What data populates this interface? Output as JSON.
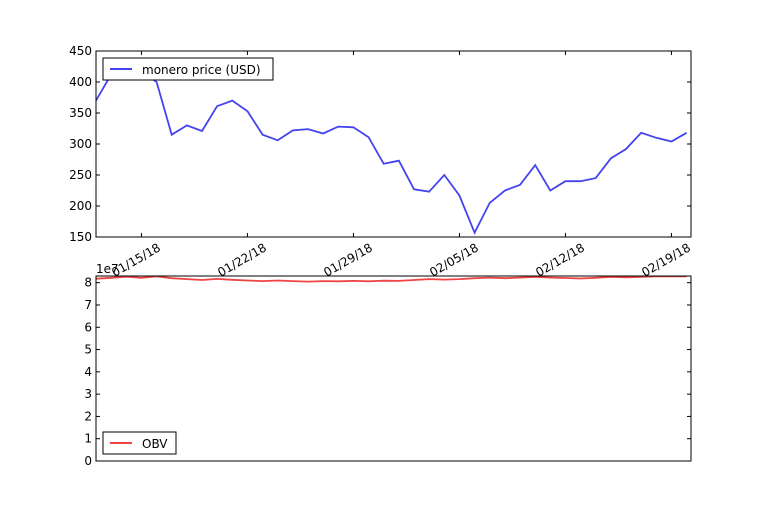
{
  "chart_data": [
    {
      "type": "line",
      "title": "",
      "xlabel": "",
      "ylabel": "",
      "ylim": [
        150,
        450
      ],
      "yticks": [
        150,
        200,
        250,
        300,
        350,
        400,
        450
      ],
      "xtick_labels": [
        "01/15/18",
        "01/22/18",
        "01/29/18",
        "02/05/18",
        "02/12/18",
        "02/19/18"
      ],
      "legend": {
        "placement": "top-left"
      },
      "grid": false,
      "series": [
        {
          "name": "monero price (USD)",
          "color": "#4444ee",
          "x": [
            "01/12/18",
            "01/13/18",
            "01/14/18",
            "01/15/18",
            "01/16/18",
            "01/17/18",
            "01/18/18",
            "01/19/18",
            "01/20/18",
            "01/21/18",
            "01/22/18",
            "01/23/18",
            "01/24/18",
            "01/25/18",
            "01/26/18",
            "01/27/18",
            "01/28/18",
            "01/29/18",
            "01/30/18",
            "01/31/18",
            "02/01/18",
            "02/02/18",
            "02/03/18",
            "02/04/18",
            "02/05/18",
            "02/06/18",
            "02/07/18",
            "02/08/18",
            "02/09/18",
            "02/10/18",
            "02/11/18",
            "02/12/18",
            "02/13/18",
            "02/14/18",
            "02/15/18",
            "02/16/18",
            "02/17/18",
            "02/18/18",
            "02/19/18",
            "02/20/18"
          ],
          "values": [
            370,
            412,
            425,
            418,
            400,
            315,
            330,
            321,
            361,
            370,
            353,
            315,
            306,
            322,
            324,
            317,
            328,
            327,
            311,
            268,
            273,
            227,
            223,
            250,
            217,
            157,
            205,
            225,
            234,
            266,
            225,
            240,
            240,
            245,
            277,
            292,
            318,
            310,
            304,
            318
          ]
        }
      ]
    },
    {
      "type": "line",
      "title": "",
      "xlabel": "",
      "ylabel": "",
      "yscale_label": "1e7",
      "ylim": [
        0,
        8.3
      ],
      "yticks": [
        0,
        1,
        2,
        3,
        4,
        5,
        6,
        7,
        8
      ],
      "legend": {
        "placement": "bottom-left"
      },
      "grid": false,
      "series": [
        {
          "name": "OBV",
          "color": "#ee4444",
          "x": [
            "01/12/18",
            "01/13/18",
            "01/14/18",
            "01/15/18",
            "01/16/18",
            "01/17/18",
            "01/18/18",
            "01/19/18",
            "01/20/18",
            "01/21/18",
            "01/22/18",
            "01/23/18",
            "01/24/18",
            "01/25/18",
            "01/26/18",
            "01/27/18",
            "01/28/18",
            "01/29/18",
            "01/30/18",
            "01/31/18",
            "02/01/18",
            "02/02/18",
            "02/03/18",
            "02/04/18",
            "02/05/18",
            "02/06/18",
            "02/07/18",
            "02/08/18",
            "02/09/18",
            "02/10/18",
            "02/11/18",
            "02/12/18",
            "02/13/18",
            "02/14/18",
            "02/15/18",
            "02/16/18",
            "02/17/18",
            "02/18/18",
            "02/19/18",
            "02/20/18"
          ],
          "values": [
            8.18,
            8.22,
            8.27,
            8.22,
            8.28,
            8.2,
            8.16,
            8.12,
            8.17,
            8.13,
            8.1,
            8.07,
            8.1,
            8.07,
            8.05,
            8.07,
            8.06,
            8.08,
            8.06,
            8.09,
            8.08,
            8.12,
            8.16,
            8.14,
            8.16,
            8.2,
            8.23,
            8.2,
            8.23,
            8.26,
            8.23,
            8.21,
            8.19,
            8.22,
            8.26,
            8.24,
            8.26,
            8.28,
            8.28,
            8.28
          ]
        }
      ]
    }
  ]
}
